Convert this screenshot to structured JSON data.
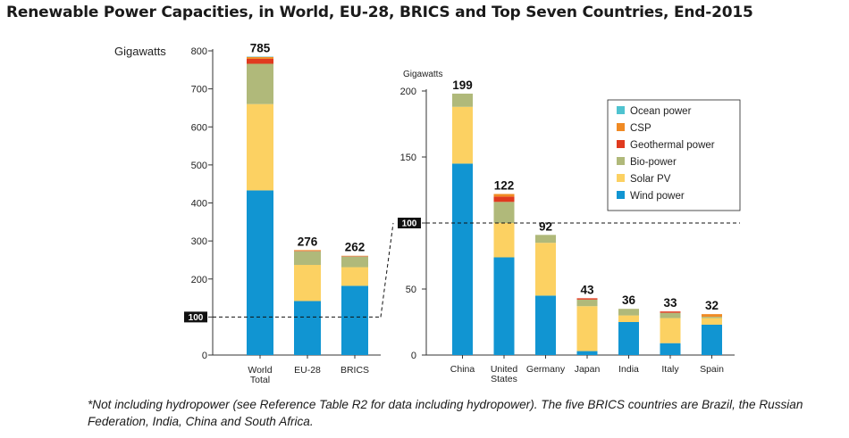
{
  "title": "Renewable Power Capacities, in World, EU-28, BRICS and Top Seven Countries, End-2015",
  "footnote": "*Not including hydropower (see Reference Table R2 for data including hydropower). The five BRICS countries are Brazil, the Russian Federation, India, China and South Africa.",
  "reference_label": "100",
  "colors": {
    "Ocean power": "#4fc3d0",
    "CSP": "#f08a24",
    "Geothermal power": "#e03a1f",
    "Bio-power": "#b0b97a",
    "Solar PV": "#fcd162",
    "Wind power": "#1195d2"
  },
  "chart_data": [
    {
      "type": "bar",
      "stacked": true,
      "ylabel": "Gigawatts",
      "ylim": [
        0,
        800
      ],
      "yticks": [
        "0",
        "100",
        "200",
        "300",
        "400",
        "500",
        "600",
        "700",
        "800"
      ],
      "reference_line": 100,
      "categories": [
        "World Total",
        "EU-28",
        "BRICS"
      ],
      "category_labels": [
        [
          "World",
          "Total"
        ],
        [
          "EU-28"
        ],
        [
          "BRICS"
        ]
      ],
      "totals": [
        "785",
        "276",
        "262"
      ],
      "series": [
        {
          "name": "Wind power",
          "values": [
            433,
            142,
            182
          ]
        },
        {
          "name": "Solar PV",
          "values": [
            227,
            95,
            49
          ]
        },
        {
          "name": "Bio-power",
          "values": [
            106,
            36,
            28
          ]
        },
        {
          "name": "Geothermal power",
          "values": [
            13,
            1,
            1
          ]
        },
        {
          "name": "CSP",
          "values": [
            5,
            2,
            1
          ]
        },
        {
          "name": "Ocean power",
          "values": [
            1,
            0,
            0
          ]
        }
      ]
    },
    {
      "type": "bar",
      "stacked": true,
      "ylabel": "Gigawatts",
      "ylim": [
        0,
        200
      ],
      "yticks": [
        "0",
        "50",
        "100",
        "150",
        "200"
      ],
      "reference_line": 100,
      "categories": [
        "China",
        "United States",
        "Germany",
        "Japan",
        "India",
        "Italy",
        "Spain"
      ],
      "category_labels": [
        [
          "China"
        ],
        [
          "United",
          "States"
        ],
        [
          "Germany"
        ],
        [
          "Japan"
        ],
        [
          "India"
        ],
        [
          "Italy"
        ],
        [
          "Spain"
        ]
      ],
      "totals": [
        "199",
        "122",
        "92",
        "43",
        "36",
        "33",
        "32"
      ],
      "series": [
        {
          "name": "Wind power",
          "values": [
            145,
            74,
            45,
            3,
            25,
            9,
            23
          ]
        },
        {
          "name": "Solar PV",
          "values": [
            43,
            26,
            40,
            34,
            5,
            19,
            5
          ]
        },
        {
          "name": "Bio-power",
          "values": [
            10,
            16,
            6,
            5,
            5,
            4,
            1
          ]
        },
        {
          "name": "Geothermal power",
          "values": [
            0,
            4,
            0,
            1,
            0,
            1,
            0
          ]
        },
        {
          "name": "CSP",
          "values": [
            0,
            2,
            0,
            0,
            0,
            0,
            2
          ]
        },
        {
          "name": "Ocean power",
          "values": [
            0,
            0,
            0,
            0,
            0,
            0,
            0
          ]
        }
      ],
      "legend": {
        "placement": "top-right",
        "items": [
          "Ocean power",
          "CSP",
          "Geothermal power",
          "Bio-power",
          "Solar PV",
          "Wind power"
        ]
      }
    }
  ]
}
